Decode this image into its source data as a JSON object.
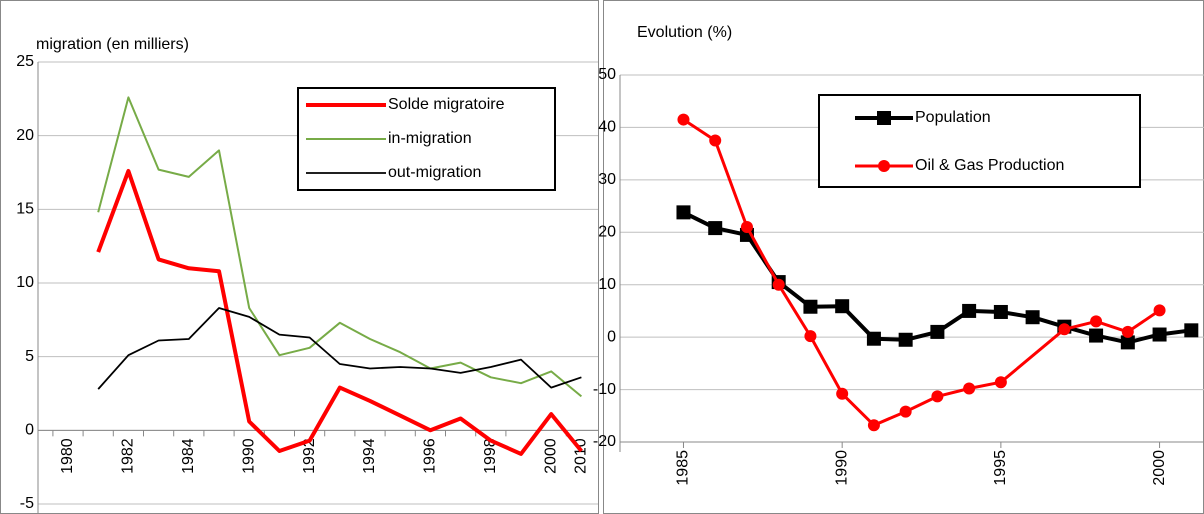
{
  "chart_data": [
    {
      "type": "line",
      "title": "migration (en milliers)",
      "categories": [
        "1980",
        null,
        "1982",
        null,
        "1984",
        null,
        "1990",
        null,
        "1992",
        null,
        "1994",
        null,
        "1996",
        null,
        "1998",
        null,
        "2000",
        "2010"
      ],
      "series": [
        {
          "name": "Solde migratoire",
          "color": "#ff0000",
          "values": [
            null,
            12.1,
            17.6,
            11.6,
            11.0,
            10.8,
            0.6,
            -1.4,
            -0.7,
            2.9,
            2.0,
            1.0,
            0.0,
            0.8,
            -0.7,
            -1.6,
            1.1,
            -1.4
          ]
        },
        {
          "name": "in-migration",
          "color": "#77ab47",
          "values": [
            null,
            14.8,
            22.6,
            17.7,
            17.2,
            19.0,
            8.3,
            5.1,
            5.6,
            7.3,
            6.2,
            5.3,
            4.2,
            4.6,
            3.6,
            3.2,
            4.0,
            2.3
          ]
        },
        {
          "name": "out-migration",
          "color": "#000000",
          "values": [
            null,
            2.8,
            5.1,
            6.1,
            6.2,
            8.3,
            7.7,
            6.5,
            6.3,
            4.5,
            4.2,
            4.3,
            4.2,
            3.9,
            4.3,
            4.8,
            2.9,
            3.6
          ]
        }
      ],
      "ylim": [
        -5,
        25
      ],
      "yticks": [
        -5,
        0,
        5,
        10,
        15,
        20,
        25
      ],
      "grid": true
    },
    {
      "type": "line",
      "title": "Evolution (%)",
      "xlim": [
        1983,
        2001.4
      ],
      "xticks": [
        1985,
        1990,
        1995,
        2000
      ],
      "series": [
        {
          "name": "Population",
          "color": "#000000",
          "marker": "square",
          "x": [
            1985,
            1986,
            1987,
            1988,
            1989,
            1990,
            1991,
            1992,
            1993,
            1994,
            1995,
            1996,
            1997,
            1998,
            1999,
            2000,
            2001
          ],
          "values": [
            23.8,
            20.8,
            19.5,
            10.5,
            5.8,
            5.9,
            -0.3,
            -0.5,
            1.0,
            5.0,
            4.8,
            3.8,
            2.0,
            0.3,
            -1.0,
            0.5,
            1.3
          ]
        },
        {
          "name": "Oil & Gas Production",
          "color": "#ff0000",
          "marker": "circle",
          "x": [
            1985,
            1986,
            1987,
            1988,
            1989,
            1990,
            1991,
            1992,
            1993,
            1994,
            1995,
            1997,
            1998,
            1999,
            2000
          ],
          "values": [
            41.5,
            37.5,
            21.0,
            10.0,
            0.2,
            -10.8,
            -16.8,
            -14.2,
            -11.3,
            -9.8,
            -8.6,
            1.5,
            3.0,
            1.0,
            5.1
          ]
        }
      ],
      "ylim": [
        -20,
        50
      ],
      "yticks": [
        -20,
        -10,
        0,
        10,
        20,
        30,
        40,
        50
      ],
      "grid": true
    }
  ]
}
